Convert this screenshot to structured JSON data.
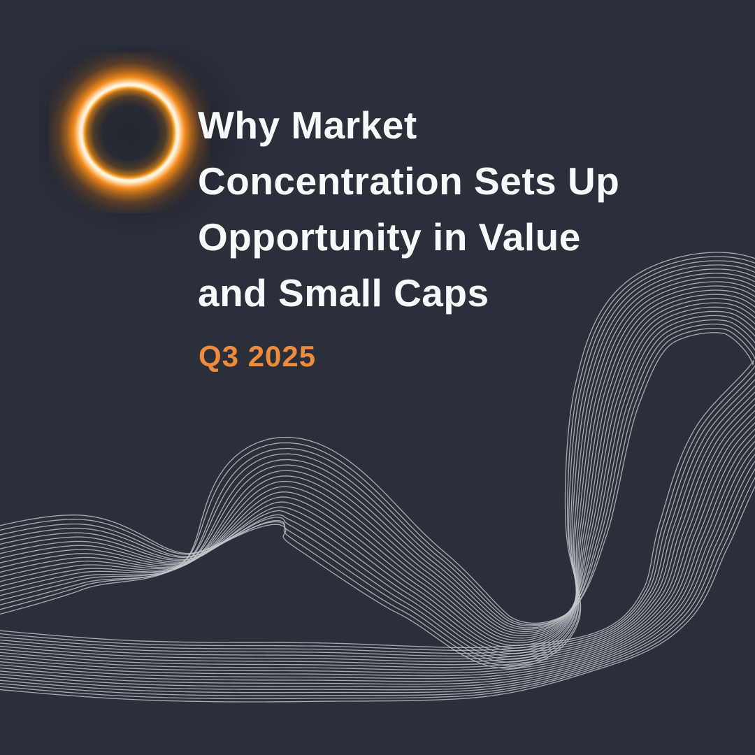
{
  "page": {
    "background_color": "#2b2f3a"
  },
  "logo": {
    "name": "glowing-ring-logo",
    "glow_color": "#f0891c",
    "ring_color": "#fff3e0"
  },
  "title": {
    "color": "#f8f9fb",
    "lines": [
      "Why Market",
      "Concentration Sets Up",
      "Opportunity in Value",
      "and Small Caps"
    ]
  },
  "subtitle": {
    "text": "Q3 2025",
    "color": "#ef8b3d"
  },
  "decor": {
    "wave": {
      "line_count": 20,
      "line_color": "#c5c7cb",
      "line_opacity": 0.8,
      "stroke_width": 1.35
    }
  }
}
